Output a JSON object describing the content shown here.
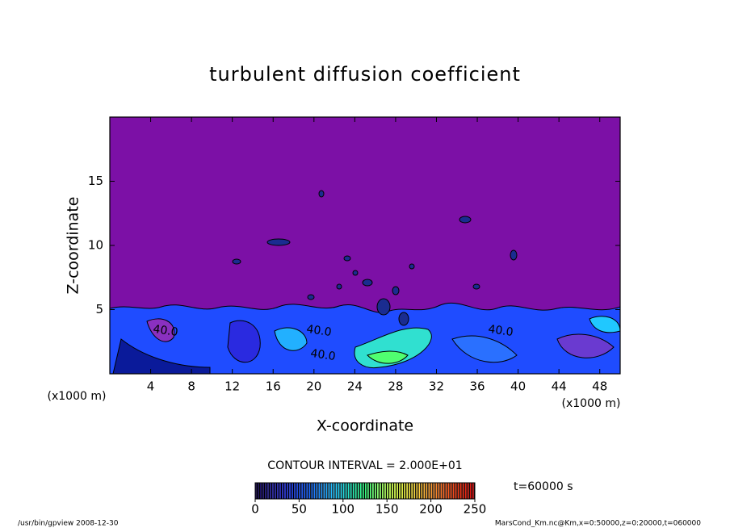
{
  "chart_data": {
    "type": "contour",
    "title": "turbulent diffusion coefficient",
    "x_label": "X-coordinate",
    "y_label": "Z-coordinate",
    "x_unit": "(x1000 m)",
    "y_unit": "(x1000 m)",
    "xlim": [
      0,
      50
    ],
    "xticks": [
      4,
      8,
      12,
      16,
      20,
      24,
      28,
      32,
      36,
      40,
      44,
      48
    ],
    "ylim": [
      0,
      20
    ],
    "yticks": [
      5,
      10,
      15
    ],
    "contour_interval": "CONTOUR INTERVAL = 2.000E+01",
    "contour_labels": [
      "40.0",
      "40.0",
      "40.0",
      "40.0"
    ],
    "time": "t=60000 s",
    "colorbar": {
      "lim": [
        0,
        250
      ],
      "ticks": [
        0,
        50,
        100,
        150,
        200,
        250
      ],
      "colors": [
        "#10004a",
        "#1a20c8",
        "#1e6cff",
        "#20d0ff",
        "#30ff80",
        "#c8ff40",
        "#ffd040",
        "#ff6020",
        "#e01010"
      ]
    },
    "background_color": "#7c10a6",
    "footer_left": "/usr/bin/gpview   2008-12-30",
    "footer_right": "MarsCond_Km.nc@Km,x=0:50000,z=0:20000,t=060000"
  }
}
